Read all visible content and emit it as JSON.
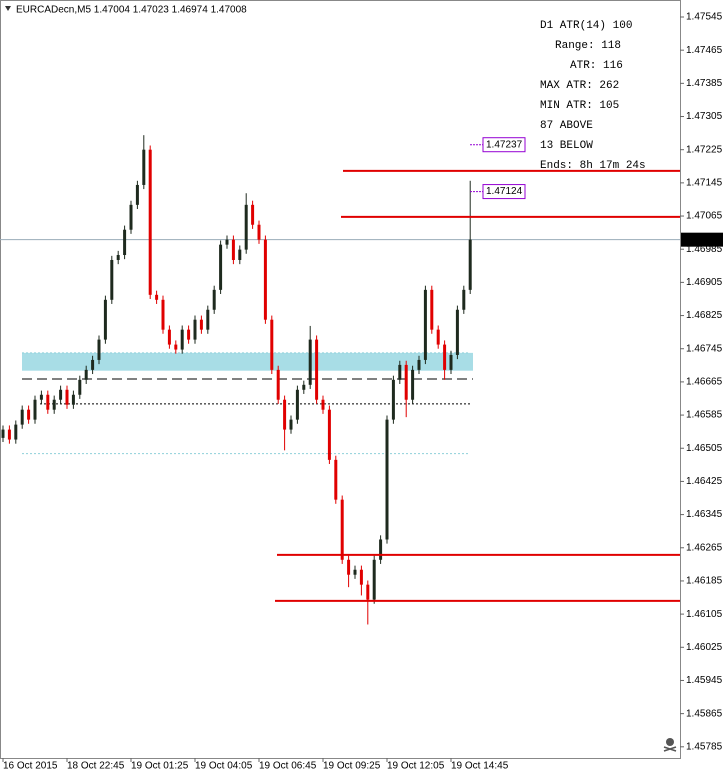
{
  "chart_data": {
    "type": "candlestick",
    "title": "EURCADecn,M5  1.47004 1.47023 1.46974 1.47008",
    "open": [
      1.4653,
      1.4655,
      1.46526,
      1.46562,
      1.46598,
      1.46574,
      1.46622,
      1.46634,
      1.46598,
      1.46622,
      1.46646,
      1.4661,
      1.46634,
      1.4667,
      1.46694,
      1.46718,
      1.46767,
      1.46863,
      1.46959,
      1.46971,
      1.47032,
      1.47092,
      1.4714,
      1.47225,
      1.46875,
      1.46863,
      1.46791,
      1.46755,
      1.46743,
      1.46791,
      1.46767,
      1.46815,
      1.46791,
      1.46839,
      1.46887,
      1.46996,
      1.47008,
      1.46959,
      1.46984,
      1.47092,
      1.47044,
      1.47008,
      1.46815,
      1.46694,
      1.46622,
      1.4655,
      1.46574,
      1.46646,
      1.46658,
      1.46767,
      1.46622,
      1.46598,
      1.46477,
      1.46381,
      1.46236,
      1.462,
      1.46212,
      1.46176,
      1.4614,
      1.46236,
      1.46285,
      1.46574,
      1.4667,
      1.46706,
      1.46622,
      1.46694,
      1.46718,
      1.46887,
      1.46791,
      1.46755,
      1.46694,
      1.4673,
      1.46839,
      1.46887
    ],
    "high": [
      1.4656,
      1.4656,
      1.46572,
      1.46608,
      1.46608,
      1.46632,
      1.46644,
      1.46644,
      1.46632,
      1.46656,
      1.46656,
      1.46644,
      1.4668,
      1.46704,
      1.46728,
      1.46777,
      1.46873,
      1.46969,
      1.46981,
      1.47042,
      1.47102,
      1.4715,
      1.4726,
      1.47235,
      1.46885,
      1.46873,
      1.46801,
      1.46765,
      1.46801,
      1.46801,
      1.46825,
      1.46825,
      1.46849,
      1.46897,
      1.47006,
      1.47018,
      1.47018,
      1.46994,
      1.4712,
      1.47102,
      1.47054,
      1.47018,
      1.46825,
      1.46704,
      1.46632,
      1.46584,
      1.46656,
      1.46668,
      1.468,
      1.46777,
      1.46632,
      1.46608,
      1.46487,
      1.46391,
      1.46246,
      1.46222,
      1.46222,
      1.46186,
      1.46246,
      1.46295,
      1.46584,
      1.4668,
      1.46716,
      1.46716,
      1.46704,
      1.46728,
      1.46897,
      1.46897,
      1.46801,
      1.46765,
      1.4674,
      1.46849,
      1.46897,
      1.4715
    ],
    "low": [
      1.4652,
      1.46516,
      1.46516,
      1.46552,
      1.46564,
      1.46564,
      1.46612,
      1.46588,
      1.46588,
      1.46612,
      1.466,
      1.466,
      1.46624,
      1.4666,
      1.46684,
      1.46708,
      1.46757,
      1.46853,
      1.46949,
      1.46961,
      1.47022,
      1.47082,
      1.4713,
      1.46865,
      1.46853,
      1.46781,
      1.46745,
      1.46733,
      1.46733,
      1.46757,
      1.46757,
      1.46781,
      1.46781,
      1.46829,
      1.46877,
      1.46986,
      1.46949,
      1.46949,
      1.46974,
      1.47034,
      1.46998,
      1.46805,
      1.46684,
      1.46612,
      1.465,
      1.4654,
      1.46564,
      1.46636,
      1.46648,
      1.46612,
      1.46588,
      1.46467,
      1.46371,
      1.46226,
      1.4617,
      1.4619,
      1.4615,
      1.4608,
      1.4613,
      1.46226,
      1.46275,
      1.46564,
      1.4666,
      1.4658,
      1.46612,
      1.46684,
      1.46708,
      1.46781,
      1.46745,
      1.4667,
      1.46684,
      1.4672,
      1.46829,
      1.46877
    ],
    "close": [
      1.4655,
      1.46526,
      1.46562,
      1.46598,
      1.46574,
      1.46622,
      1.46634,
      1.46598,
      1.46622,
      1.46646,
      1.4661,
      1.46634,
      1.4667,
      1.46694,
      1.46718,
      1.46767,
      1.46863,
      1.46959,
      1.46971,
      1.47032,
      1.47092,
      1.4714,
      1.47225,
      1.46875,
      1.46863,
      1.46791,
      1.46755,
      1.46743,
      1.46791,
      1.46767,
      1.46815,
      1.46791,
      1.46839,
      1.46887,
      1.46996,
      1.47008,
      1.46959,
      1.46984,
      1.47092,
      1.47044,
      1.47008,
      1.46815,
      1.46694,
      1.46622,
      1.4655,
      1.46574,
      1.46646,
      1.46658,
      1.46767,
      1.46622,
      1.46598,
      1.46477,
      1.46381,
      1.46236,
      1.462,
      1.46212,
      1.46176,
      1.4614,
      1.46236,
      1.46285,
      1.46574,
      1.4667,
      1.46706,
      1.46622,
      1.46694,
      1.46718,
      1.46887,
      1.46791,
      1.46755,
      1.46694,
      1.4673,
      1.46839,
      1.46887,
      1.47008
    ],
    "up_color": "#1e2a1e",
    "down_color": "#e00000",
    "ylim": [
      1.45758,
      1.47586
    ],
    "yticks": [
      1.47545,
      1.47465,
      1.47385,
      1.47305,
      1.47225,
      1.47145,
      1.47065,
      1.46985,
      1.46905,
      1.46825,
      1.46745,
      1.46665,
      1.46585,
      1.46505,
      1.46425,
      1.46345,
      1.46265,
      1.46185,
      1.46105,
      1.46025,
      1.45945,
      1.45865,
      1.45785
    ],
    "xticks": [
      {
        "value": 0,
        "label": "16 Oct 2015"
      },
      {
        "value": 10,
        "label": "18 Oct 22:45"
      },
      {
        "value": 20,
        "label": "19 Oct 01:25"
      },
      {
        "value": 30,
        "label": "19 Oct 04:05"
      },
      {
        "value": 40,
        "label": "19 Oct 06:45"
      },
      {
        "value": 50,
        "label": "19 Oct 09:25"
      },
      {
        "value": 60,
        "label": "19 Oct 12:05"
      },
      {
        "value": 70,
        "label": "19 Oct 14:45"
      }
    ],
    "current_price": 1.47008,
    "price_labels": [
      1.47237,
      1.47124
    ],
    "levels": [
      1.47174,
      1.47063,
      1.46248,
      1.46137
    ],
    "level_color": "#e00000",
    "zone": [
      1.46692,
      1.46735
    ],
    "zone_color": "#a8dde6",
    "dashed_level": 1.46672,
    "dotted_level": 1.46612,
    "zone_edges": [
      1.46735,
      1.46492
    ],
    "indicators": [
      {
        "text": "D1 ATR(14) 100",
        "color": "#5b9bd5"
      },
      {
        "text": "Range: 118",
        "color": "#cc33cc"
      },
      {
        "text": "ATR: 116",
        "color": "#9400d3"
      },
      {
        "text": "MAX ATR: 262",
        "color": "#e07b39"
      },
      {
        "text": "MIN ATR: 105",
        "color": "#d2691e"
      },
      {
        "text": "87 ABOVE",
        "color": "#0000cc"
      },
      {
        "text": "13 BELOW",
        "color": "#0000cc"
      },
      {
        "text": "Ends: 8h 17m 24s",
        "color": "#888888"
      }
    ]
  }
}
